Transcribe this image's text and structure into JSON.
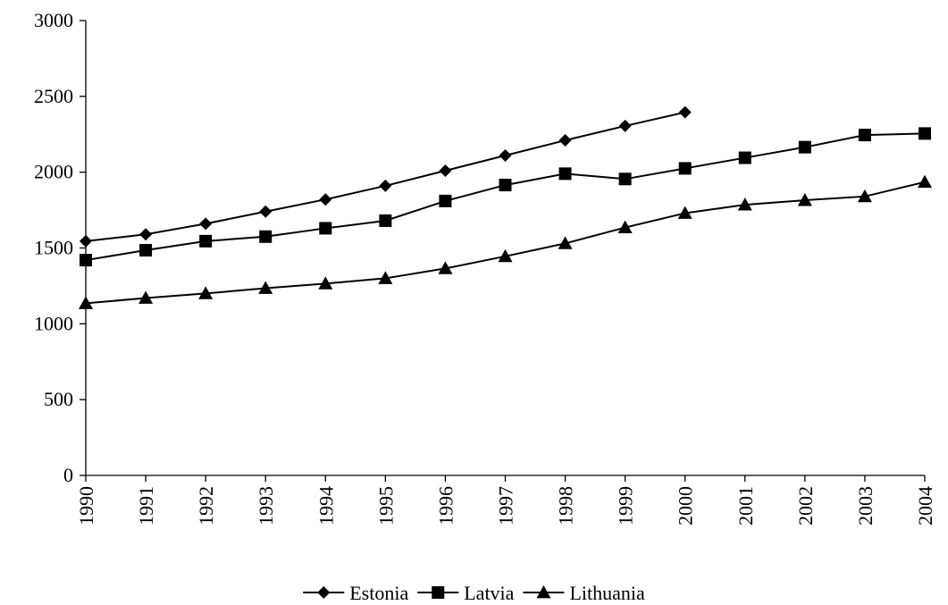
{
  "chart_data": {
    "type": "line",
    "title": "",
    "xlabel": "",
    "ylabel": "",
    "categories": [
      "1990",
      "1991",
      "1992",
      "1993",
      "1994",
      "1995",
      "1996",
      "1997",
      "1998",
      "1999",
      "2000",
      "2001",
      "2002",
      "2003",
      "2004"
    ],
    "ylim": [
      0,
      3000
    ],
    "yticks": [
      "0",
      "500",
      "1000",
      "1500",
      "2000",
      "2500",
      "3000"
    ],
    "grid": false,
    "legend_position": "bottom",
    "series": [
      {
        "name": "Estonia",
        "marker": "diamond",
        "color": "#000000",
        "values": [
          1545,
          1590,
          1660,
          1740,
          1820,
          1910,
          2010,
          2110,
          2210,
          2305,
          2395,
          null,
          null,
          null,
          null
        ]
      },
      {
        "name": "Latvia",
        "marker": "square",
        "color": "#000000",
        "values": [
          1420,
          1485,
          1545,
          1575,
          1630,
          1680,
          1810,
          1915,
          1990,
          1955,
          2025,
          2095,
          2165,
          2245,
          2255
        ]
      },
      {
        "name": "Lithuania",
        "marker": "triangle",
        "color": "#000000",
        "values": [
          1135,
          1170,
          1200,
          1235,
          1265,
          1300,
          1365,
          1445,
          1530,
          1635,
          1730,
          1785,
          1815,
          1840,
          1935
        ]
      }
    ]
  }
}
